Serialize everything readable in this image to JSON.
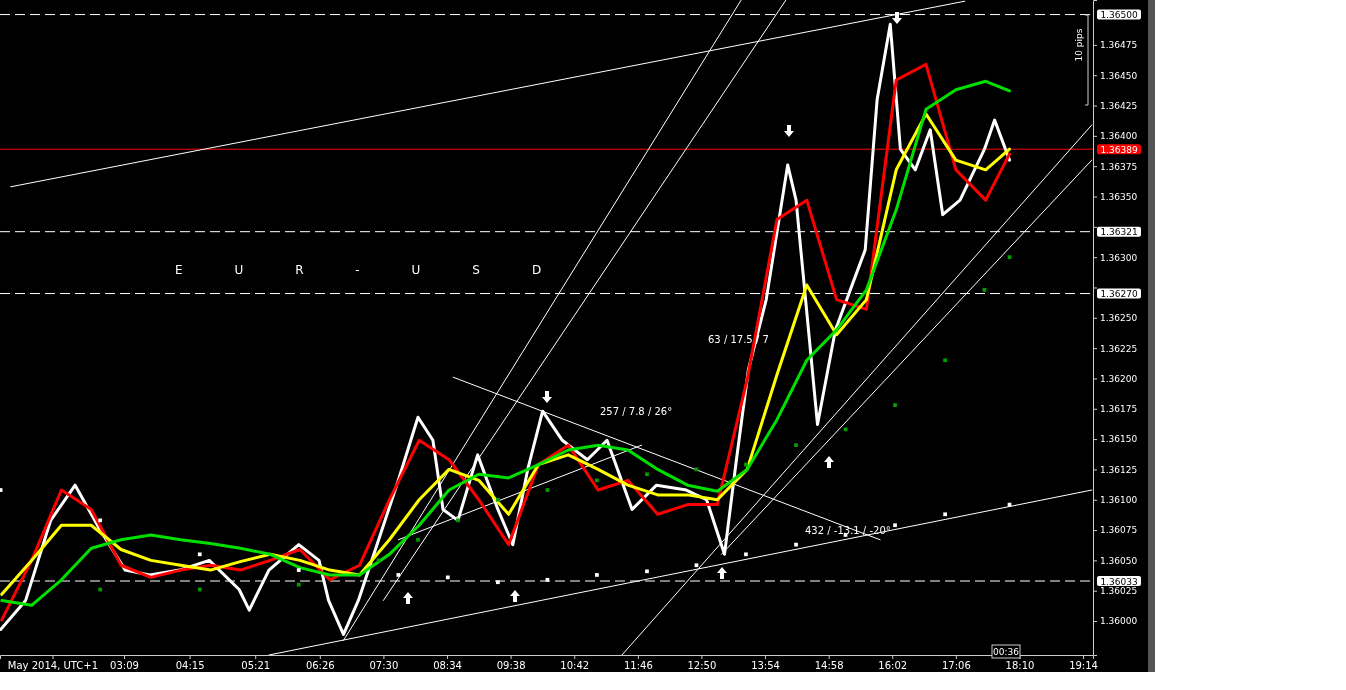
{
  "chart_data": {
    "type": "line",
    "title": "EUR-USD",
    "xlim": [
      1.07,
      19.4
    ],
    "ylim": [
      1.35972,
      1.36512
    ],
    "xticks": [
      {
        "value": 1.95,
        "label": "May 2014, UTC+1"
      },
      {
        "value": 3.15,
        "label": "03:09"
      },
      {
        "value": 4.25,
        "label": "04:15"
      },
      {
        "value": 5.35,
        "label": "05:21"
      },
      {
        "value": 6.433,
        "label": "06:26"
      },
      {
        "value": 7.5,
        "label": "07:30"
      },
      {
        "value": 8.567,
        "label": "08:34"
      },
      {
        "value": 9.633,
        "label": "09:38"
      },
      {
        "value": 10.7,
        "label": "10:42"
      },
      {
        "value": 11.767,
        "label": "11:46"
      },
      {
        "value": 12.833,
        "label": "12:50"
      },
      {
        "value": 13.9,
        "label": "13:54"
      },
      {
        "value": 14.967,
        "label": "14:58"
      },
      {
        "value": 16.033,
        "label": "16:02"
      },
      {
        "value": 17.1,
        "label": "17:06"
      },
      {
        "value": 18.167,
        "label": "18:10"
      },
      {
        "value": 19.233,
        "label": "19:14"
      }
    ],
    "yticks": [
      {
        "value": 1.36,
        "label": "1.36000"
      },
      {
        "value": 1.36025,
        "label": "1.36025"
      },
      {
        "value": 1.3605,
        "label": "1.36050"
      },
      {
        "value": 1.36075,
        "label": "1.36075"
      },
      {
        "value": 1.361,
        "label": "1.36100"
      },
      {
        "value": 1.36125,
        "label": "1.36125"
      },
      {
        "value": 1.3615,
        "label": "1.36150"
      },
      {
        "value": 1.36175,
        "label": "1.36175"
      },
      {
        "value": 1.362,
        "label": "1.36200"
      },
      {
        "value": 1.36225,
        "label": "1.36225"
      },
      {
        "value": 1.3625,
        "label": "1.36250"
      },
      {
        "value": 1.36275,
        "label": null
      },
      {
        "value": 1.363,
        "label": "1.36300"
      },
      {
        "value": 1.36325,
        "label": null
      },
      {
        "value": 1.3635,
        "label": "1.36350"
      },
      {
        "value": 1.36375,
        "label": "1.36375"
      },
      {
        "value": 1.364,
        "label": "1.36400"
      },
      {
        "value": 1.36425,
        "label": "1.36425"
      },
      {
        "value": 1.3645,
        "label": "1.36450"
      },
      {
        "value": 1.36475,
        "label": "1.36475"
      }
    ],
    "grid": false,
    "ref_lines": [
      {
        "axis": "y",
        "value": 1.365,
        "label": "1.36500",
        "color": "#ffffff",
        "line_style": "dashed"
      },
      {
        "axis": "y",
        "value": 1.36389,
        "label": "1.36389",
        "color": "#ff0000",
        "line_style": "solid"
      },
      {
        "axis": "y",
        "value": 1.36321,
        "label": "1.36321",
        "color": "#ffffff",
        "line_style": "dashed"
      },
      {
        "axis": "y",
        "value": 1.3627,
        "label": "1.36270",
        "color": "#ffffff",
        "line_style": "dashed"
      },
      {
        "axis": "y",
        "value": 1.36033,
        "label": "1.36033",
        "color": "#ffffff",
        "line_style": "dashed"
      }
    ],
    "annotations": [
      "63 / 17.5 / 7",
      "257 / 7.8 / 26°",
      "432 / -13.1 / -20°",
      "10 pips",
      "00:36"
    ],
    "series": [
      {
        "type": "line",
        "color": "#ffffff",
        "x": [
          1.25,
          17.25
        ],
        "values": [
          1.36358,
          1.36511
        ]
      },
      {
        "type": "line",
        "color": "#ffffff",
        "x": [
          6.83,
          13.5
        ],
        "values": [
          1.35984,
          1.36512
        ]
      },
      {
        "type": "line",
        "color": "#ffffff",
        "x": [
          7.5,
          14.25
        ],
        "values": [
          1.36017,
          1.36512
        ]
      },
      {
        "type": "line",
        "color": "#ffffff",
        "x": [
          7.75,
          11.83
        ],
        "values": [
          1.36067,
          1.36145
        ]
      },
      {
        "type": "line",
        "color": "#ffffff",
        "x": [
          8.67,
          15.83
        ],
        "values": [
          1.36201,
          1.36067
        ]
      },
      {
        "type": "line",
        "color": "#ffffff",
        "x": [
          11.5,
          19.38
        ],
        "values": [
          1.35972,
          1.36409
        ]
      },
      {
        "type": "line",
        "color": "#ffffff",
        "x": [
          13.17,
          19.38
        ],
        "values": [
          1.36055,
          1.3638
        ]
      },
      {
        "type": "line",
        "color": "#ffffff",
        "x": [
          5.58,
          19.38
        ],
        "values": [
          1.35972,
          1.36108
        ]
      },
      {
        "type": "scatter",
        "marker": "square",
        "color": "#ffffff",
        "x": [
          1.08,
          2.75,
          4.42,
          6.08,
          7.75,
          8.58,
          9.42,
          10.25,
          11.08,
          11.92,
          12.75,
          13.58,
          14.42,
          15.25,
          16.08,
          16.92,
          18.0
        ],
        "values": [
          1.36108,
          1.36083,
          1.36055,
          1.36042,
          1.36038,
          1.36036,
          1.36032,
          1.36034,
          1.36038,
          1.36041,
          1.36046,
          1.36055,
          1.36063,
          1.36071,
          1.36079,
          1.36088,
          1.36096
        ]
      },
      {
        "type": "scatter",
        "marker": "square",
        "color": "#00a000",
        "x": [
          2.75,
          4.42,
          6.08,
          7.42,
          8.08,
          8.75,
          9.42,
          10.25,
          11.08,
          11.92,
          12.75,
          13.58,
          14.42,
          15.25,
          16.08,
          16.92,
          17.58,
          18.0
        ],
        "values": [
          1.36026,
          1.36026,
          1.3603,
          1.3605,
          1.36067,
          1.36083,
          1.361,
          1.36108,
          1.36116,
          1.36121,
          1.36125,
          1.36129,
          1.36145,
          1.36158,
          1.36178,
          1.36215,
          1.36273,
          1.363
        ]
      },
      {
        "type": "line",
        "color": "#ffffff",
        "x": [
          1.08,
          1.5,
          1.92,
          2.33,
          2.75,
          3.17,
          3.58,
          4.08,
          4.58,
          5.08,
          5.25,
          5.58,
          6.08,
          6.42,
          6.58,
          6.83,
          7.08,
          7.42,
          7.75,
          8.08,
          8.33,
          8.5,
          8.75,
          9.08,
          9.42,
          9.67,
          9.92,
          10.17,
          10.5,
          10.92,
          11.25,
          11.67,
          12.08,
          12.58,
          12.92,
          13.22,
          13.42,
          13.62,
          13.92,
          14.28,
          14.42,
          14.58,
          14.78,
          15.08,
          15.33,
          15.58,
          15.78,
          16.0,
          16.17,
          16.42,
          16.67,
          16.88,
          17.17,
          17.58,
          17.75,
          18.0
        ],
        "values": [
          1.35993,
          1.36017,
          1.36083,
          1.36112,
          1.36075,
          1.36042,
          1.36038,
          1.36042,
          1.3605,
          1.36026,
          1.36009,
          1.36042,
          1.36063,
          1.3605,
          1.36017,
          1.35989,
          1.36017,
          1.36067,
          1.36116,
          1.36168,
          1.36149,
          1.36092,
          1.36083,
          1.36137,
          1.36092,
          1.36063,
          1.36125,
          1.36173,
          1.36149,
          1.36133,
          1.36149,
          1.36092,
          1.36112,
          1.36108,
          1.361,
          1.36055,
          1.36133,
          1.36207,
          1.36265,
          1.36376,
          1.36347,
          1.36265,
          1.36162,
          1.3624,
          1.36273,
          1.36306,
          1.3643,
          1.36492,
          1.36389,
          1.36372,
          1.36405,
          1.36335,
          1.36347,
          1.36389,
          1.36413,
          1.3638
        ]
      },
      {
        "type": "line",
        "color": "#ff0000",
        "x": [
          1.1,
          1.6,
          2.1,
          2.6,
          3.1,
          3.6,
          4.1,
          4.6,
          5.1,
          5.6,
          6.1,
          6.6,
          7.1,
          7.6,
          8.1,
          8.6,
          9.1,
          9.6,
          10.1,
          10.6,
          11.1,
          11.6,
          12.1,
          12.6,
          13.1,
          13.6,
          14.1,
          14.6,
          15.1,
          15.6,
          16.1,
          16.6,
          17.1,
          17.6,
          18.0
        ],
        "values": [
          1.36001,
          1.3605,
          1.36108,
          1.36092,
          1.36046,
          1.36036,
          1.36042,
          1.36046,
          1.36042,
          1.3605,
          1.36059,
          1.36034,
          1.36046,
          1.361,
          1.36149,
          1.36133,
          1.361,
          1.36063,
          1.36129,
          1.36145,
          1.36108,
          1.36116,
          1.36088,
          1.36096,
          1.36096,
          1.36199,
          1.36331,
          1.36347,
          1.36265,
          1.36257,
          1.36446,
          1.36459,
          1.36372,
          1.36347,
          1.36385
        ]
      },
      {
        "type": "line",
        "color": "#ffff00",
        "x": [
          1.1,
          1.6,
          2.1,
          2.6,
          3.1,
          3.6,
          4.1,
          4.6,
          5.1,
          5.6,
          6.1,
          6.6,
          7.1,
          7.6,
          8.1,
          8.6,
          9.1,
          9.6,
          10.1,
          10.6,
          11.1,
          11.6,
          12.1,
          12.6,
          13.1,
          13.6,
          14.1,
          14.6,
          15.1,
          15.6,
          16.1,
          16.6,
          17.1,
          17.6,
          18.0
        ],
        "values": [
          1.36022,
          1.3605,
          1.36079,
          1.36079,
          1.36059,
          1.3605,
          1.36046,
          1.36042,
          1.36049,
          1.36055,
          1.3605,
          1.36042,
          1.36038,
          1.36067,
          1.361,
          1.36125,
          1.36116,
          1.36088,
          1.36129,
          1.36137,
          1.36125,
          1.36112,
          1.36104,
          1.36104,
          1.361,
          1.36125,
          1.36203,
          1.36277,
          1.36236,
          1.36265,
          1.36372,
          1.36418,
          1.3638,
          1.36372,
          1.36389
        ]
      },
      {
        "type": "line",
        "color": "#00e000",
        "x": [
          1.1,
          1.6,
          2.1,
          2.6,
          3.1,
          3.6,
          4.1,
          4.6,
          5.1,
          5.6,
          6.1,
          6.6,
          7.1,
          7.6,
          8.1,
          8.6,
          9.1,
          9.6,
          10.1,
          10.6,
          11.1,
          11.6,
          12.1,
          12.6,
          13.1,
          13.6,
          14.1,
          14.6,
          15.1,
          15.6,
          16.1,
          16.6,
          17.1,
          17.6,
          18.0
        ],
        "values": [
          1.36017,
          1.36013,
          1.36034,
          1.3606,
          1.36067,
          1.36071,
          1.36067,
          1.36064,
          1.3606,
          1.36055,
          1.36044,
          1.36038,
          1.36038,
          1.36055,
          1.36079,
          1.36108,
          1.36121,
          1.36118,
          1.36129,
          1.36141,
          1.36145,
          1.36141,
          1.36125,
          1.36112,
          1.36107,
          1.36125,
          1.36166,
          1.36215,
          1.3624,
          1.36273,
          1.36339,
          1.36422,
          1.36438,
          1.36445,
          1.36437
        ]
      }
    ]
  }
}
